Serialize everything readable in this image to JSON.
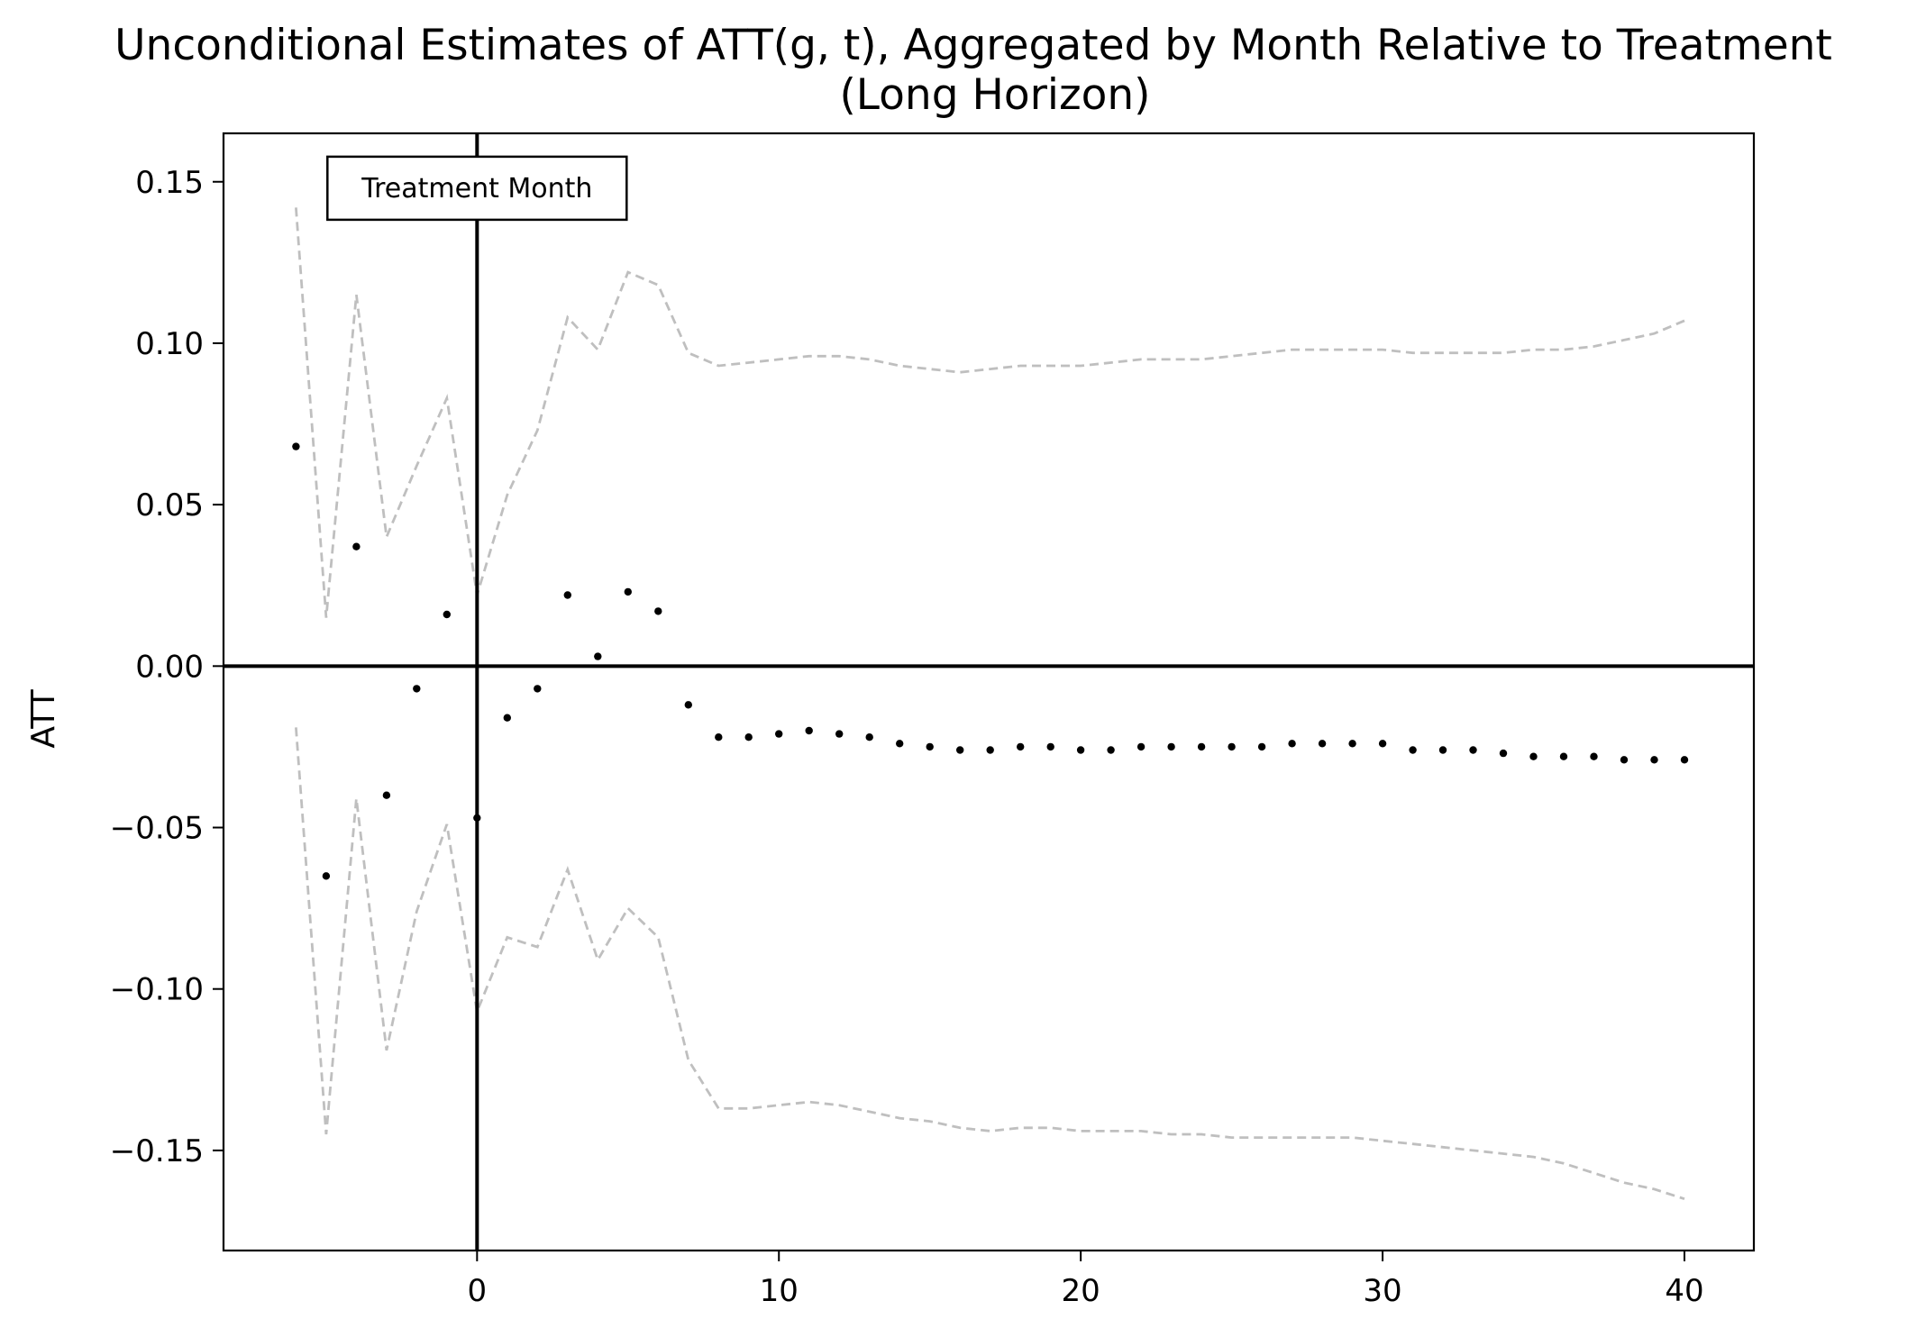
{
  "chart_data": {
    "type": "scatter",
    "title": "Unconditional Estimates of ATT(g, t), Aggregated by Month Relative to Treatment",
    "subtitle": "(Long Horizon)",
    "xlabel": "",
    "ylabel": "ATT",
    "xlim": [
      -8.4,
      42.3
    ],
    "ylim": [
      -0.181,
      0.165
    ],
    "x_ticks": [
      0,
      10,
      20,
      30,
      40
    ],
    "x_tick_labels": [
      "0",
      "10",
      "20",
      "30",
      "40"
    ],
    "y_ticks": [
      0.15,
      0.1,
      0.05,
      0.0,
      -0.05,
      -0.1,
      -0.15
    ],
    "y_tick_labels": [
      "0.15",
      "0.10",
      "0.05",
      "0.00",
      "−0.05",
      "−0.10",
      "−0.15"
    ],
    "grid": false,
    "legend": "none",
    "reference_lines": {
      "vertical_x": 0,
      "horizontal_y": 0,
      "color": "#000000"
    },
    "annotation": {
      "text": "Treatment Month",
      "x": 0,
      "y": 0.148
    },
    "x": [
      -6,
      -5,
      -4,
      -3,
      -2,
      -1,
      0,
      1,
      2,
      3,
      4,
      5,
      6,
      7,
      8,
      9,
      10,
      11,
      12,
      13,
      14,
      15,
      16,
      17,
      18,
      19,
      20,
      21,
      22,
      23,
      24,
      25,
      26,
      27,
      28,
      29,
      30,
      31,
      32,
      33,
      34,
      35,
      36,
      37,
      38,
      39,
      40
    ],
    "series": [
      {
        "kind": "point",
        "color": "#000000",
        "values": [
          0.068,
          -0.065,
          0.037,
          -0.04,
          -0.007,
          0.016,
          -0.047,
          -0.016,
          -0.007,
          0.022,
          0.003,
          0.023,
          0.017,
          -0.012,
          -0.022,
          -0.022,
          -0.021,
          -0.02,
          -0.021,
          -0.022,
          -0.024,
          -0.025,
          -0.026,
          -0.026,
          -0.025,
          -0.025,
          -0.026,
          -0.026,
          -0.025,
          -0.025,
          -0.025,
          -0.025,
          -0.025,
          -0.024,
          -0.024,
          -0.024,
          -0.024,
          -0.026,
          -0.026,
          -0.026,
          -0.027,
          -0.028,
          -0.028,
          -0.028,
          -0.029,
          -0.029,
          -0.029
        ]
      },
      {
        "kind": "upper-band",
        "color": "#bfbfbf",
        "values": [
          0.142,
          0.015,
          0.115,
          0.04,
          0.062,
          0.083,
          0.022,
          0.053,
          0.073,
          0.108,
          0.098,
          0.122,
          0.118,
          0.097,
          0.093,
          0.094,
          0.095,
          0.096,
          0.096,
          0.095,
          0.093,
          0.092,
          0.091,
          0.092,
          0.093,
          0.093,
          0.093,
          0.094,
          0.095,
          0.095,
          0.095,
          0.096,
          0.097,
          0.098,
          0.098,
          0.098,
          0.098,
          0.097,
          0.097,
          0.097,
          0.097,
          0.098,
          0.098,
          0.099,
          0.101,
          0.103,
          0.107
        ]
      },
      {
        "kind": "lower-band",
        "color": "#bfbfbf",
        "values": [
          -0.019,
          -0.145,
          -0.041,
          -0.119,
          -0.076,
          -0.049,
          -0.107,
          -0.084,
          -0.087,
          -0.063,
          -0.091,
          -0.075,
          -0.084,
          -0.122,
          -0.137,
          -0.137,
          -0.136,
          -0.135,
          -0.136,
          -0.138,
          -0.14,
          -0.141,
          -0.143,
          -0.144,
          -0.143,
          -0.143,
          -0.144,
          -0.144,
          -0.144,
          -0.145,
          -0.145,
          -0.146,
          -0.146,
          -0.146,
          -0.146,
          -0.146,
          -0.147,
          -0.148,
          -0.149,
          -0.15,
          -0.151,
          -0.152,
          -0.154,
          -0.157,
          -0.16,
          -0.162,
          -0.165
        ]
      }
    ]
  }
}
